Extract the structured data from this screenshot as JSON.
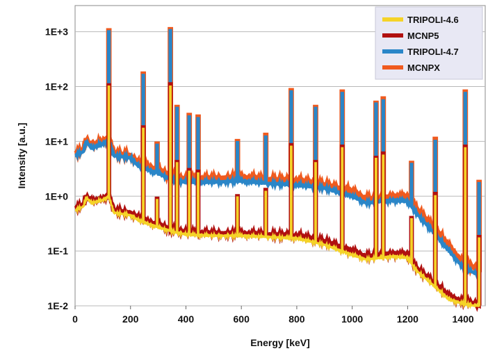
{
  "chart_data": {
    "type": "line",
    "xlabel": "Energy [keV]",
    "ylabel": "Intensity [a.u.]",
    "xlim": [
      0,
      1480
    ],
    "ylim": [
      0.01,
      3000
    ],
    "yscale": "log",
    "grid": true,
    "legend_position": "top-right",
    "x_ticks": [
      "0",
      "200",
      "400",
      "600",
      "800",
      "1000",
      "1200",
      "1400"
    ],
    "y_ticks": [
      "1E-2",
      "1E-1",
      "1E+0",
      "1E+1",
      "1E+2",
      "1E+3"
    ],
    "legend": [
      {
        "label": "TRIPOLI-4.6",
        "color": "#f5d328"
      },
      {
        "label": "MCNP5",
        "color": "#b01010"
      },
      {
        "label": "TRIPOLI-4.7",
        "color": "#2a86c8"
      },
      {
        "label": "MCNPX",
        "color": "#f05a1e"
      }
    ],
    "series": [
      {
        "name": "MCNPX",
        "color": "#f05a1e",
        "continuum": [
          [
            0,
            6
          ],
          [
            30,
            7
          ],
          [
            40,
            11
          ],
          [
            60,
            8
          ],
          [
            100,
            10
          ],
          [
            122,
            12
          ],
          [
            140,
            6
          ],
          [
            200,
            5.5
          ],
          [
            230,
            4
          ],
          [
            300,
            3
          ],
          [
            360,
            2.2
          ],
          [
            400,
            2.0
          ],
          [
            500,
            2.1
          ],
          [
            600,
            2.2
          ],
          [
            700,
            2.0
          ],
          [
            800,
            1.9
          ],
          [
            900,
            1.6
          ],
          [
            1000,
            1.2
          ],
          [
            1050,
            0.9
          ],
          [
            1100,
            0.9
          ],
          [
            1150,
            1.0
          ],
          [
            1200,
            0.95
          ],
          [
            1230,
            0.6
          ],
          [
            1300,
            0.25
          ],
          [
            1350,
            0.12
          ],
          [
            1400,
            0.06
          ],
          [
            1440,
            0.05
          ],
          [
            1460,
            0.04
          ]
        ],
        "peaks": [
          [
            122,
            1050
          ],
          [
            245,
            170
          ],
          [
            295,
            9
          ],
          [
            344,
            1100
          ],
          [
            367,
            42
          ],
          [
            411,
            30
          ],
          [
            444,
            28
          ],
          [
            586,
            10
          ],
          [
            688,
            13
          ],
          [
            779,
            85
          ],
          [
            867,
            42
          ],
          [
            964,
            80
          ],
          [
            1086,
            50
          ],
          [
            1112,
            60
          ],
          [
            1213,
            4
          ],
          [
            1299,
            11
          ],
          [
            1408,
            80
          ],
          [
            1457,
            1.8
          ]
        ]
      },
      {
        "name": "TRIPOLI-4.7",
        "color": "#2a86c8",
        "continuum": [
          [
            0,
            5.5
          ],
          [
            30,
            6.5
          ],
          [
            40,
            10
          ],
          [
            60,
            7.5
          ],
          [
            100,
            9
          ],
          [
            122,
            11
          ],
          [
            140,
            5.5
          ],
          [
            200,
            5
          ],
          [
            230,
            3.5
          ],
          [
            300,
            2.6
          ],
          [
            360,
            1.9
          ],
          [
            400,
            1.8
          ],
          [
            500,
            1.8
          ],
          [
            600,
            1.9
          ],
          [
            700,
            1.7
          ],
          [
            800,
            1.6
          ],
          [
            900,
            1.4
          ],
          [
            1000,
            1.0
          ],
          [
            1050,
            0.75
          ],
          [
            1100,
            0.8
          ],
          [
            1150,
            0.85
          ],
          [
            1200,
            0.8
          ],
          [
            1230,
            0.5
          ],
          [
            1300,
            0.2
          ],
          [
            1350,
            0.1
          ],
          [
            1400,
            0.05
          ],
          [
            1440,
            0.04
          ],
          [
            1460,
            0.035
          ]
        ],
        "peaks": [
          [
            122,
            1000
          ],
          [
            245,
            160
          ],
          [
            295,
            8.5
          ],
          [
            344,
            1050
          ],
          [
            367,
            40
          ],
          [
            411,
            28
          ],
          [
            444,
            26
          ],
          [
            586,
            9.5
          ],
          [
            688,
            12
          ],
          [
            779,
            80
          ],
          [
            867,
            40
          ],
          [
            964,
            75
          ],
          [
            1086,
            48
          ],
          [
            1112,
            55
          ],
          [
            1213,
            3.8
          ],
          [
            1299,
            10
          ],
          [
            1408,
            75
          ],
          [
            1457,
            1.7
          ]
        ]
      },
      {
        "name": "MCNP5",
        "color": "#b01010",
        "continuum": [
          [
            0,
            0.6
          ],
          [
            30,
            0.7
          ],
          [
            40,
            1.0
          ],
          [
            60,
            0.8
          ],
          [
            100,
            0.9
          ],
          [
            122,
            1.1
          ],
          [
            140,
            0.55
          ],
          [
            200,
            0.5
          ],
          [
            230,
            0.4
          ],
          [
            300,
            0.3
          ],
          [
            360,
            0.24
          ],
          [
            400,
            0.22
          ],
          [
            500,
            0.21
          ],
          [
            600,
            0.21
          ],
          [
            700,
            0.2
          ],
          [
            800,
            0.19
          ],
          [
            900,
            0.15
          ],
          [
            1000,
            0.1
          ],
          [
            1050,
            0.08
          ],
          [
            1100,
            0.085
          ],
          [
            1150,
            0.09
          ],
          [
            1200,
            0.085
          ],
          [
            1230,
            0.05
          ],
          [
            1300,
            0.025
          ],
          [
            1350,
            0.015
          ],
          [
            1400,
            0.012
          ],
          [
            1440,
            0.011
          ],
          [
            1460,
            0.01
          ]
        ],
        "peaks": [
          [
            122,
            105
          ],
          [
            245,
            18
          ],
          [
            295,
            0.9
          ],
          [
            344,
            110
          ],
          [
            367,
            4.2
          ],
          [
            411,
            3
          ],
          [
            444,
            2.8
          ],
          [
            586,
            1.0
          ],
          [
            688,
            1.3
          ],
          [
            779,
            8.5
          ],
          [
            867,
            4.2
          ],
          [
            964,
            8
          ],
          [
            1086,
            5
          ],
          [
            1112,
            6
          ],
          [
            1213,
            0.4
          ],
          [
            1299,
            1.1
          ],
          [
            1408,
            8
          ],
          [
            1457,
            0.18
          ]
        ]
      },
      {
        "name": "TRIPOLI-4.6",
        "color": "#f5d328",
        "continuum": [
          [
            0,
            0.55
          ],
          [
            30,
            0.65
          ],
          [
            40,
            0.95
          ],
          [
            60,
            0.75
          ],
          [
            100,
            0.85
          ],
          [
            122,
            1.0
          ],
          [
            140,
            0.5
          ],
          [
            200,
            0.45
          ],
          [
            230,
            0.36
          ],
          [
            300,
            0.27
          ],
          [
            360,
            0.22
          ],
          [
            400,
            0.2
          ],
          [
            500,
            0.19
          ],
          [
            600,
            0.19
          ],
          [
            700,
            0.18
          ],
          [
            800,
            0.17
          ],
          [
            900,
            0.13
          ],
          [
            1000,
            0.085
          ],
          [
            1050,
            0.07
          ],
          [
            1100,
            0.075
          ],
          [
            1150,
            0.08
          ],
          [
            1200,
            0.075
          ],
          [
            1230,
            0.045
          ],
          [
            1300,
            0.022
          ],
          [
            1350,
            0.013
          ],
          [
            1400,
            0.011
          ],
          [
            1440,
            0.01
          ],
          [
            1460,
            0.01
          ]
        ],
        "peaks": [
          [
            122,
            100
          ],
          [
            245,
            17
          ],
          [
            295,
            0.85
          ],
          [
            344,
            100
          ],
          [
            367,
            4
          ],
          [
            411,
            2.8
          ],
          [
            444,
            2.6
          ],
          [
            586,
            0.95
          ],
          [
            688,
            1.2
          ],
          [
            779,
            8
          ],
          [
            867,
            4
          ],
          [
            964,
            7.5
          ],
          [
            1086,
            4.8
          ],
          [
            1112,
            5.5
          ],
          [
            1213,
            0.38
          ],
          [
            1299,
            1.0
          ],
          [
            1408,
            7.5
          ],
          [
            1457,
            0.17
          ]
        ]
      }
    ]
  }
}
